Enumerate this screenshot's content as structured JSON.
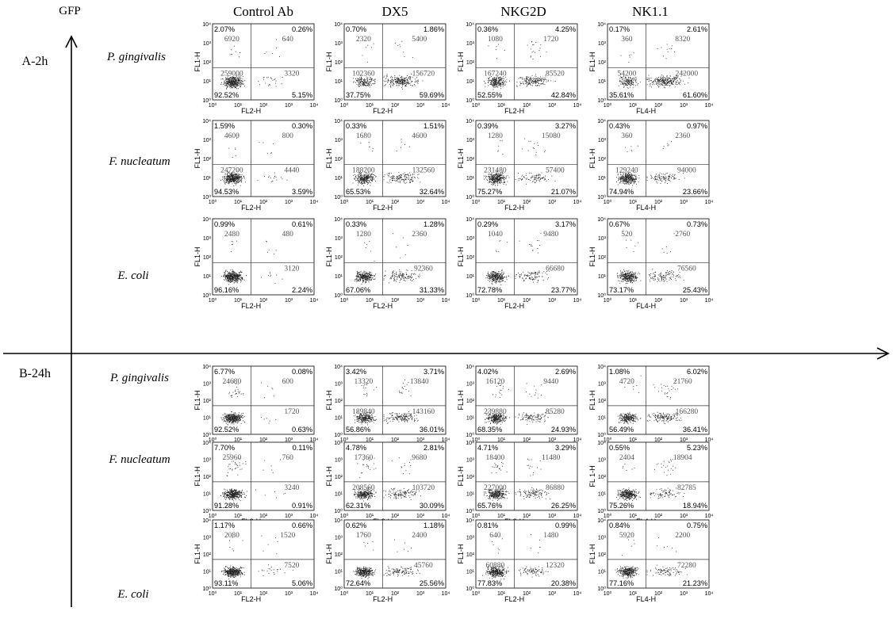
{
  "figure": {
    "y_axis_label": "GFP",
    "section_a_label": "A-2h",
    "section_b_label": "B-24h",
    "columns": [
      "Control Ab",
      "DX5",
      "NKG2D",
      "NK1.1"
    ],
    "rows": [
      "P. gingivalis",
      "F. nucleatum",
      "E. coli"
    ],
    "axis_ticks": [
      "10⁰",
      "10¹",
      "10²",
      "10³",
      "10⁴"
    ]
  },
  "chart_data": [
    {
      "type": "scatter",
      "section": "A-2h",
      "row": "P. gingivalis",
      "column": "Control Ab",
      "xlabel": "FL2-H",
      "ylabel": "FL1-H",
      "quadrant_pct": {
        "ul": "2.07%",
        "ur": "0.26%",
        "ll": "92.52%",
        "lr": "5.15%"
      },
      "quadrant_counts": {
        "ul": "6920",
        "ur": "640",
        "ll": "259000",
        "lr": "3320"
      }
    },
    {
      "type": "scatter",
      "section": "A-2h",
      "row": "P. gingivalis",
      "column": "DX5",
      "xlabel": "FL2-H",
      "ylabel": "FL1-H",
      "quadrant_pct": {
        "ul": "0.70%",
        "ur": "1.86%",
        "ll": "37.75%",
        "lr": "59.69%"
      },
      "quadrant_counts": {
        "ul": "2320",
        "ur": "5400",
        "ll": "102360",
        "lr": "156720"
      }
    },
    {
      "type": "scatter",
      "section": "A-2h",
      "row": "P. gingivalis",
      "column": "NKG2D",
      "xlabel": "FL2-H",
      "ylabel": "FL1-H",
      "quadrant_pct": {
        "ul": "0.36%",
        "ur": "4.25%",
        "ll": "52.55%",
        "lr": "42.84%"
      },
      "quadrant_counts": {
        "ul": "1080",
        "ur": "1720",
        "ll": "167240",
        "lr": "85520"
      }
    },
    {
      "type": "scatter",
      "section": "A-2h",
      "row": "P. gingivalis",
      "column": "NK1.1",
      "xlabel": "FL4-H",
      "ylabel": "FL1-H",
      "quadrant_pct": {
        "ul": "0.17%",
        "ur": "2.61%",
        "ll": "35.61%",
        "lr": "61.60%"
      },
      "quadrant_counts": {
        "ul": "360",
        "ur": "8320",
        "ll": "54200",
        "lr": "242000"
      }
    },
    {
      "type": "scatter",
      "section": "A-2h",
      "row": "F. nucleatum",
      "column": "Control Ab",
      "xlabel": "FL2-H",
      "ylabel": "FL1-H",
      "quadrant_pct": {
        "ul": "1.59%",
        "ur": "0.30%",
        "ll": "94.53%",
        "lr": "3.59%"
      },
      "quadrant_counts": {
        "ul": "4600",
        "ur": "800",
        "ll": "247200",
        "lr": "4440"
      }
    },
    {
      "type": "scatter",
      "section": "A-2h",
      "row": "F. nucleatum",
      "column": "DX5",
      "xlabel": "FL2-H",
      "ylabel": "FL1-H",
      "quadrant_pct": {
        "ul": "0.33%",
        "ur": "1.51%",
        "ll": "65.53%",
        "lr": "32.64%"
      },
      "quadrant_counts": {
        "ul": "1680",
        "ur": "4600",
        "ll": "188200",
        "lr": "132560"
      }
    },
    {
      "type": "scatter",
      "section": "A-2h",
      "row": "F. nucleatum",
      "column": "NKG2D",
      "xlabel": "FL2-H",
      "ylabel": "FL1-H",
      "quadrant_pct": {
        "ul": "0.39%",
        "ur": "3.27%",
        "ll": "75.27%",
        "lr": "21.07%"
      },
      "quadrant_counts": {
        "ul": "1280",
        "ur": "15080",
        "ll": "231480",
        "lr": "57400"
      }
    },
    {
      "type": "scatter",
      "section": "A-2h",
      "row": "F. nucleatum",
      "column": "NK1.1",
      "xlabel": "FL4-H",
      "ylabel": "FL1-H",
      "quadrant_pct": {
        "ul": "0.43%",
        "ur": "0.97%",
        "ll": "74.94%",
        "lr": "23.66%"
      },
      "quadrant_counts": {
        "ul": "360",
        "ur": "2360",
        "ll": "129240",
        "lr": "94000"
      }
    },
    {
      "type": "scatter",
      "section": "A-2h",
      "row": "E. coli",
      "column": "Control Ab",
      "xlabel": "FL2-H",
      "ylabel": "FL1-H",
      "quadrant_pct": {
        "ul": "0.99%",
        "ur": "0.61%",
        "ll": "96.16%",
        "lr": "2.24%"
      },
      "quadrant_counts": {
        "ul": "2480",
        "ur": "480",
        "ll": "",
        "lr": "3120"
      }
    },
    {
      "type": "scatter",
      "section": "A-2h",
      "row": "E. coli",
      "column": "DX5",
      "xlabel": "FL2-H",
      "ylabel": "FL1-H",
      "quadrant_pct": {
        "ul": "0.33%",
        "ur": "1.28%",
        "ll": "67.06%",
        "lr": "31.33%"
      },
      "quadrant_counts": {
        "ul": "1280",
        "ur": "2360",
        "ll": "",
        "lr": "92360"
      }
    },
    {
      "type": "scatter",
      "section": "A-2h",
      "row": "E. coli",
      "column": "NKG2D",
      "xlabel": "FL2-H",
      "ylabel": "FL1-H",
      "quadrant_pct": {
        "ul": "0.29%",
        "ur": "3.17%",
        "ll": "72.78%",
        "lr": "23.77%"
      },
      "quadrant_counts": {
        "ul": "1040",
        "ur": "9480",
        "ll": "",
        "lr": "66680"
      }
    },
    {
      "type": "scatter",
      "section": "A-2h",
      "row": "E. coli",
      "column": "NK1.1",
      "xlabel": "FL4-H",
      "ylabel": "FL1-H",
      "quadrant_pct": {
        "ul": "0.67%",
        "ur": "0.73%",
        "ll": "73.17%",
        "lr": "25.43%"
      },
      "quadrant_counts": {
        "ul": "520",
        "ur": "2760",
        "ll": "",
        "lr": "76560"
      }
    },
    {
      "type": "scatter",
      "section": "B-24h",
      "row": "P. gingivalis",
      "column": "Control Ab",
      "xlabel": "FL2-H",
      "ylabel": "FL1-H",
      "quadrant_pct": {
        "ul": "6.77%",
        "ur": "0.08%",
        "ll": "92.52%",
        "lr": "0.63%"
      },
      "quadrant_counts": {
        "ul": "24680",
        "ur": "600",
        "ll": "",
        "lr": "1720"
      }
    },
    {
      "type": "scatter",
      "section": "B-24h",
      "row": "P. gingivalis",
      "column": "DX5",
      "xlabel": "FL2-H",
      "ylabel": "FL1-H",
      "quadrant_pct": {
        "ul": "3.42%",
        "ur": "3.71%",
        "ll": "56.86%",
        "lr": "36.01%"
      },
      "quadrant_counts": {
        "ul": "13320",
        "ur": "13840",
        "ll": "189840",
        "lr": "143160"
      }
    },
    {
      "type": "scatter",
      "section": "B-24h",
      "row": "P. gingivalis",
      "column": "NKG2D",
      "xlabel": "FL2-H",
      "ylabel": "FL1-H",
      "quadrant_pct": {
        "ul": "4.02%",
        "ur": "2.69%",
        "ll": "68.35%",
        "lr": "24.93%"
      },
      "quadrant_counts": {
        "ul": "16120",
        "ur": "9440",
        "ll": "239880",
        "lr": "85280"
      }
    },
    {
      "type": "scatter",
      "section": "B-24h",
      "row": "P. gingivalis",
      "column": "NK1.1",
      "xlabel": "FL4-H",
      "ylabel": "FL1-H",
      "quadrant_pct": {
        "ul": "1.08%",
        "ur": "6.02%",
        "ll": "56.49%",
        "lr": "36.41%"
      },
      "quadrant_counts": {
        "ul": "4720",
        "ur": "21760",
        "ll": "",
        "lr": "166280"
      }
    },
    {
      "type": "scatter",
      "section": "B-24h",
      "row": "F. nucleatum",
      "column": "Control Ab",
      "xlabel": "FL2-H",
      "ylabel": "FL1-H",
      "quadrant_pct": {
        "ul": "7.70%",
        "ur": "0.11%",
        "ll": "91.28%",
        "lr": "0.91%"
      },
      "quadrant_counts": {
        "ul": "25960",
        "ur": "760",
        "ll": "",
        "lr": "3240"
      }
    },
    {
      "type": "scatter",
      "section": "B-24h",
      "row": "F. nucleatum",
      "column": "DX5",
      "xlabel": "FL2-H",
      "ylabel": "FL1-H",
      "quadrant_pct": {
        "ul": "4.78%",
        "ur": "2.81%",
        "ll": "62.31%",
        "lr": "30.09%"
      },
      "quadrant_counts": {
        "ul": "17360",
        "ur": "9680",
        "ll": "208560",
        "lr": "103720"
      }
    },
    {
      "type": "scatter",
      "section": "B-24h",
      "row": "F. nucleatum",
      "column": "NKG2D",
      "xlabel": "FL2-H",
      "ylabel": "FL1-H",
      "quadrant_pct": {
        "ul": "4.71%",
        "ur": "3.29%",
        "ll": "65.76%",
        "lr": "26.25%"
      },
      "quadrant_counts": {
        "ul": "18400",
        "ur": "11480",
        "ll": "227000",
        "lr": "86880"
      }
    },
    {
      "type": "scatter",
      "section": "B-24h",
      "row": "F. nucleatum",
      "column": "NK1.1",
      "xlabel": "FL4-H",
      "ylabel": "FL 1-H",
      "quadrant_pct": {
        "ul": "0.55%",
        "ur": "5.23%",
        "ll": "75.26%",
        "lr": "18.94%"
      },
      "quadrant_counts": {
        "ul": "2404",
        "ur": "18904",
        "ll": "",
        "lr": "82785"
      }
    },
    {
      "type": "scatter",
      "section": "B-24h",
      "row": "E. coli",
      "column": "Control Ab",
      "xlabel": "FL2-H",
      "ylabel": "FL1-H",
      "quadrant_pct": {
        "ul": "1.17%",
        "ur": "0.66%",
        "ll": "93.11%",
        "lr": "5.06%"
      },
      "quadrant_counts": {
        "ul": "2080",
        "ur": "1520",
        "ll": "",
        "lr": "7520"
      }
    },
    {
      "type": "scatter",
      "section": "B-24h",
      "row": "E. coli",
      "column": "DX5",
      "xlabel": "FL2-H",
      "ylabel": "FL1-H",
      "quadrant_pct": {
        "ul": "0.62%",
        "ur": "1.18%",
        "ll": "72.64%",
        "lr": "25.56%"
      },
      "quadrant_counts": {
        "ul": "1760",
        "ur": "2400",
        "ll": "",
        "lr": "45760"
      }
    },
    {
      "type": "scatter",
      "section": "B-24h",
      "row": "E. coli",
      "column": "NKG2D",
      "xlabel": "FL2-H",
      "ylabel": "FL1-H",
      "quadrant_pct": {
        "ul": "0.81%",
        "ur": "0.99%",
        "ll": "77.83%",
        "lr": "20.38%"
      },
      "quadrant_counts": {
        "ul": "640",
        "ur": "1480",
        "ll": "60880",
        "lr": "12320"
      }
    },
    {
      "type": "scatter",
      "section": "B-24h",
      "row": "E. coli",
      "column": "NK1.1",
      "xlabel": "FL4-H",
      "ylabel": "FL1-H",
      "quadrant_pct": {
        "ul": "0.84%",
        "ur": "0.75%",
        "ll": "77.16%",
        "lr": "21.23%"
      },
      "quadrant_counts": {
        "ul": "5920",
        "ur": "2200",
        "ll": "",
        "lr": "72280"
      }
    }
  ]
}
